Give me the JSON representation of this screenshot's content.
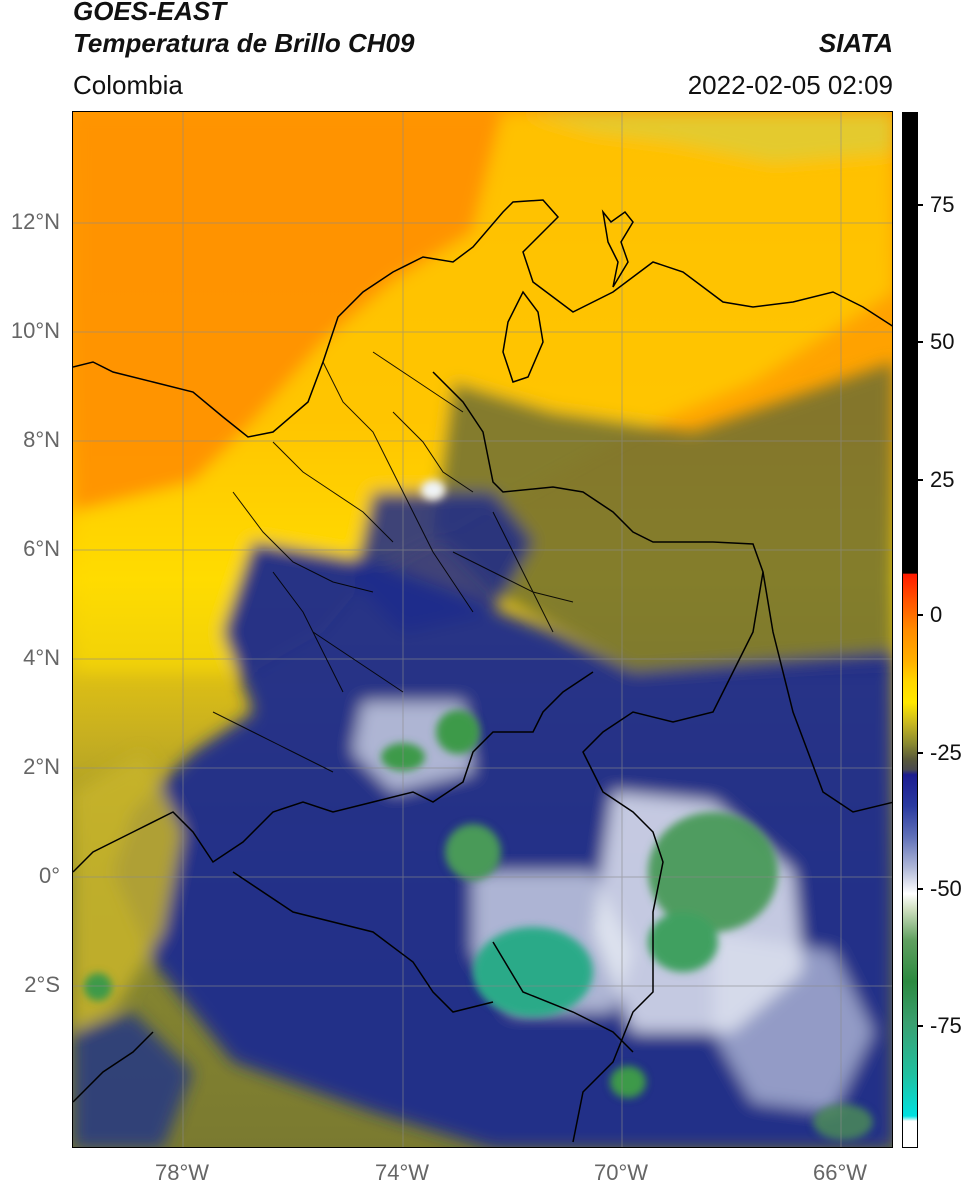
{
  "header": {
    "title_line1": "GOES-EAST",
    "title_line2": "Temperatura de Brillo CH09",
    "organization": "SIATA",
    "region": "Colombia",
    "datetime": "2022-02-05 02:09"
  },
  "map": {
    "lat_labels": [
      "12°N",
      "10°N",
      "8°N",
      "6°N",
      "4°N",
      "2°N",
      "0°",
      "2°S"
    ],
    "lon_labels": [
      "78°W",
      "74°W",
      "70°W",
      "66°W"
    ]
  },
  "colorbar": {
    "tick_labels": [
      "75",
      "50",
      "25",
      "0",
      "-25",
      "-50",
      "-75"
    ]
  },
  "colors": {
    "warm_orange": "#ff8c00",
    "yellow": "#ffd700",
    "olive": "#6b6b30",
    "navy": "#1c2a8c",
    "white_cloud": "#f2f2f2",
    "green_cold": "#3c9a48",
    "teal_coldest": "#20c0a0"
  }
}
